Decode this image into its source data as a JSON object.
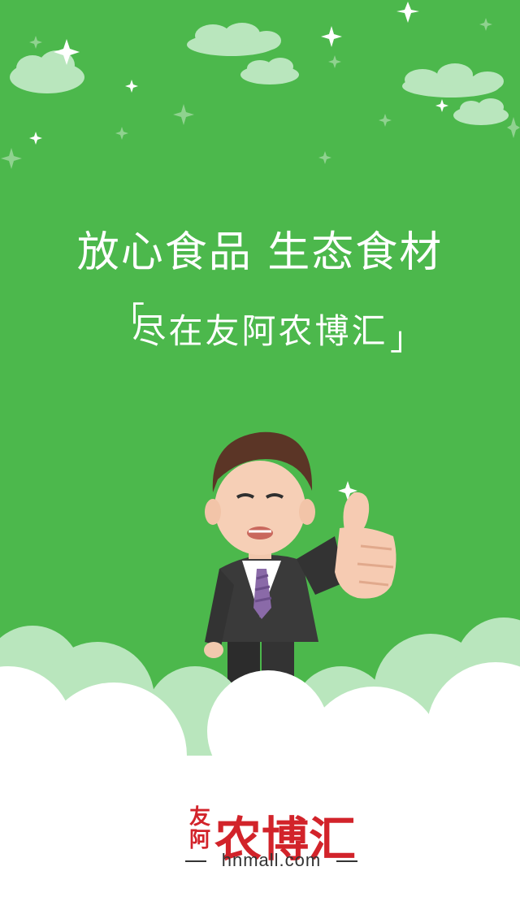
{
  "splash": {
    "headline": "放心食品  生态食材",
    "subline": "尽在友阿农博汇",
    "bracket_open": "「",
    "bracket_close": "」"
  },
  "logo": {
    "brand_small_top": "友",
    "brand_small_bottom": "阿",
    "brand_big": "农博汇",
    "url": "hnmall.com"
  },
  "colors": {
    "background": "#4cb84c",
    "brand_red": "#d2232a",
    "cloud_light": "#b9e6bd",
    "white": "#ffffff"
  },
  "icons": [
    "sparkle-icon",
    "cloud-icon",
    "mascot-thumbs-up"
  ]
}
